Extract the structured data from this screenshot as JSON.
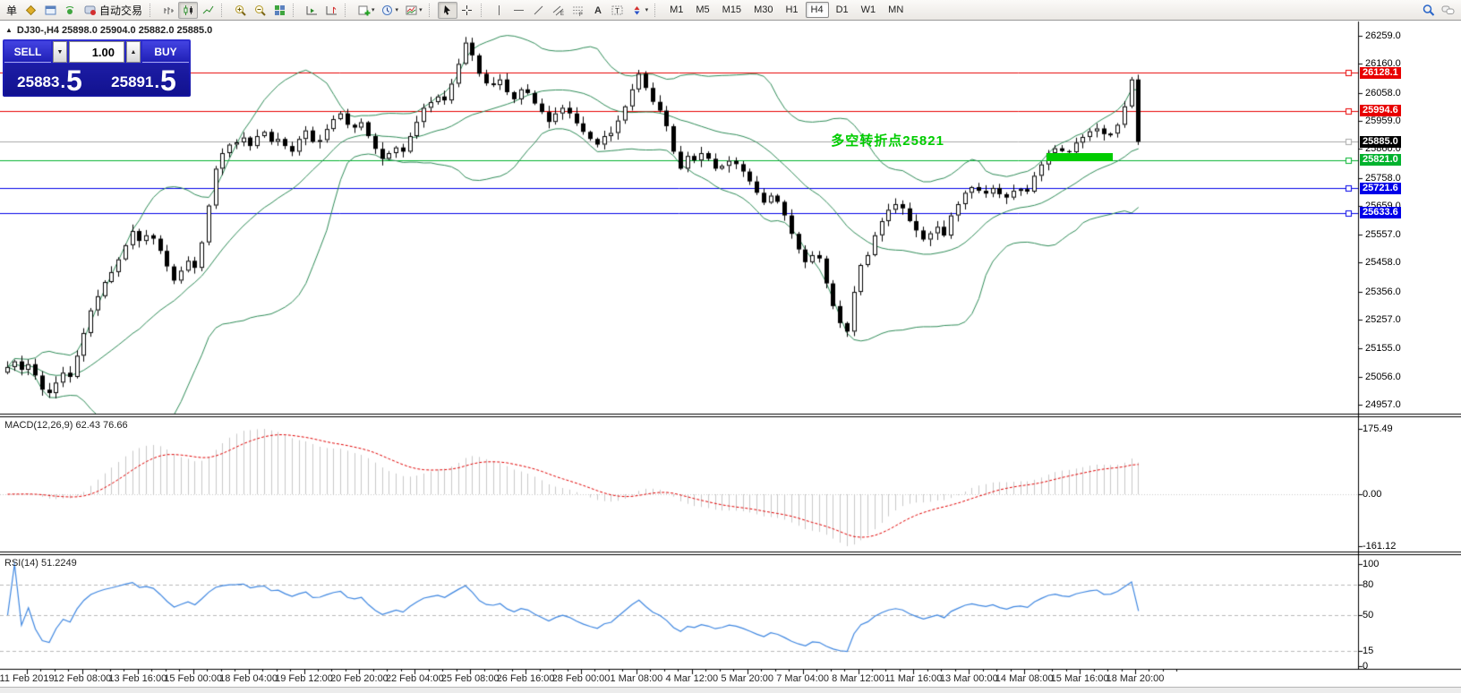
{
  "toolbar": {
    "order_label": "单",
    "auto_trading_label": "自动交易",
    "timeframes": [
      "M1",
      "M5",
      "M15",
      "M30",
      "H1",
      "H4",
      "D1",
      "W1",
      "MN"
    ],
    "active_timeframe": "H4"
  },
  "icons": {
    "collapse": "▲",
    "caret": "▾",
    "spinner_down": "▼",
    "spinner_up": "▲"
  },
  "one_click": {
    "sell_label": "SELL",
    "buy_label": "BUY",
    "volume": "1.00",
    "decimal": ".",
    "sell_price": {
      "int": "25883",
      "frac": "5"
    },
    "buy_price": {
      "int": "25891",
      "frac": "5"
    }
  },
  "chart": {
    "title": "DJ30-,H4  25898.0 25904.0 25882.0 25885.0",
    "symbol": "DJ30-",
    "period": "H4",
    "open": "25898.0",
    "high": "25904.0",
    "low": "25882.0",
    "close": "25885.0",
    "annotation": {
      "text": "多空转折点25821",
      "color": "#00CC00",
      "bar": 119,
      "price": 25895
    }
  },
  "chart_data": {
    "type": "candlestick",
    "title": "DJ30- H4",
    "y_range": [
      24957.0,
      26259.0
    ],
    "y_ticks": [
      "26259.0",
      "26160.0",
      "26058.0",
      "25959.0",
      "25860.0",
      "25758.0",
      "25659.0",
      "25557.0",
      "25458.0",
      "25356.0",
      "25257.0",
      "25155.0",
      "25056.0",
      "24957.0"
    ],
    "x_labels": [
      "11 Feb 2019",
      "12 Feb 08:00",
      "13 Feb 16:00",
      "15 Feb 00:00",
      "18 Feb 04:00",
      "19 Feb 12:00",
      "20 Feb 20:00",
      "22 Feb 04:00",
      "25 Feb 08:00",
      "26 Feb 16:00",
      "28 Feb 00:00",
      "1 Mar 08:00",
      "4 Mar 12:00",
      "5 Mar 20:00",
      "7 Mar 04:00",
      "8 Mar 12:00",
      "11 Mar 16:00",
      "13 Mar 00:00",
      "14 Mar 08:00",
      "15 Mar 16:00",
      "18 Mar 20:00"
    ],
    "closes": [
      25090,
      25110,
      25080,
      25100,
      25060,
      25010,
      24998,
      25035,
      25070,
      25055,
      25130,
      25210,
      25290,
      25340,
      25390,
      25425,
      25470,
      25520,
      25570,
      25535,
      25555,
      25543,
      25500,
      25445,
      25395,
      25430,
      25465,
      25440,
      25530,
      25660,
      25790,
      25845,
      25875,
      25883,
      25900,
      25870,
      25905,
      25920,
      25885,
      25895,
      25870,
      25850,
      25895,
      25925,
      25885,
      25891,
      25930,
      25965,
      25985,
      25945,
      25935,
      25954,
      25905,
      25860,
      25825,
      25845,
      25865,
      25850,
      25905,
      25955,
      26005,
      26025,
      26045,
      26031,
      26090,
      26160,
      26235,
      26190,
      26125,
      26091,
      26085,
      26105,
      26060,
      26035,
      26070,
      26057,
      26020,
      25990,
      25955,
      25985,
      26005,
      25985,
      25950,
      25920,
      25895,
      25875,
      25905,
      25916,
      25960,
      26010,
      26070,
      26125,
      26075,
      26026,
      25995,
      25940,
      25850,
      25790,
      25835,
      25819,
      25845,
      25825,
      25790,
      25800,
      25818,
      25806,
      25780,
      25745,
      25705,
      25670,
      25695,
      25673,
      25625,
      25560,
      25505,
      25460,
      25485,
      25473,
      25385,
      25305,
      25245,
      25215,
      25355,
      25450,
      25485,
      25555,
      25605,
      25645,
      25665,
      25650,
      25605,
      25572,
      25540,
      25562,
      25585,
      25554,
      25625,
      25665,
      25705,
      25725,
      25712,
      25702,
      25722,
      25700,
      25688,
      25712,
      25718,
      25709,
      25765,
      25805,
      25845,
      25862,
      25852,
      25848,
      25882,
      25902,
      25922,
      25932,
      25912,
      25914,
      25945,
      26010,
      26105,
      25885
    ],
    "levels": [
      {
        "price": 26128.1,
        "label": "26128.1",
        "color": "#E80000"
      },
      {
        "price": 25994.6,
        "label": "25994.6",
        "color": "#E80000"
      },
      {
        "price": 25885.0,
        "label": "25885.0",
        "color": "#A8A8A8",
        "badge_bg": "#000000",
        "current": true
      },
      {
        "price": 25821.0,
        "label": "25821.0",
        "color": "#00B22D"
      },
      {
        "price": 25721.6,
        "label": "25721.6",
        "color": "#0000E8"
      },
      {
        "price": 25633.6,
        "label": "25633.6",
        "color": "#0000E8"
      }
    ],
    "highlight_segment": {
      "price": 25830,
      "from_bar": 150,
      "to_bar": 159,
      "thickness": 9,
      "color": "#00CC00"
    },
    "indicators": {
      "bollinger": {
        "period": 20,
        "deviation": 2
      },
      "macd": {
        "label": "MACD(12,26,9) 62.43 76.66",
        "main": "62.43",
        "signal": "76.66",
        "axis": [
          "175.49",
          "0.00",
          "-161.12"
        ]
      },
      "rsi": {
        "label": "RSI(14) 51.2249",
        "value": "51.2249",
        "axis": [
          "100",
          "80",
          "50",
          "15",
          "0"
        ],
        "levels": [
          80,
          50,
          15
        ]
      }
    },
    "colors": {
      "candle": "#000000",
      "bull_fill": "#ffffff",
      "bollinger": "#2E8B57",
      "macd_hist": "#C8C8C8",
      "macd_signal": "#E00000",
      "rsi_line": "#3E86E0",
      "panel_blue": "#1C1CB8",
      "annotation_green": "#00CC00"
    }
  }
}
